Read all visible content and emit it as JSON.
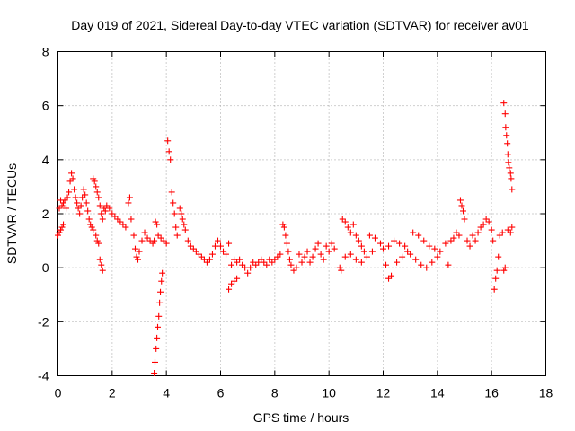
{
  "chart_data": {
    "type": "scatter",
    "title": "Day 019 of 2021, Sidereal Day-to-day VTEC variation (SDTVAR) for receiver av01",
    "xlabel": "GPS time / hours",
    "ylabel": "SDTVAR / TECUs",
    "xlim": [
      0,
      18
    ],
    "ylim": [
      -4,
      8
    ],
    "xticks": [
      0,
      2,
      4,
      6,
      8,
      10,
      12,
      14,
      16,
      18
    ],
    "yticks": [
      -4,
      -2,
      0,
      2,
      4,
      6,
      8
    ],
    "grid": true,
    "marker": "+",
    "color": "#ff0000",
    "series": [
      {
        "name": "SDTVAR",
        "points": [
          [
            0.0,
            1.2
          ],
          [
            0.05,
            1.3
          ],
          [
            0.1,
            1.4
          ],
          [
            0.15,
            1.5
          ],
          [
            0.2,
            1.6
          ],
          [
            0.05,
            2.2
          ],
          [
            0.1,
            2.5
          ],
          [
            0.15,
            2.3
          ],
          [
            0.2,
            2.4
          ],
          [
            0.25,
            2.5
          ],
          [
            0.3,
            2.2
          ],
          [
            0.35,
            2.6
          ],
          [
            0.4,
            2.8
          ],
          [
            0.45,
            3.2
          ],
          [
            0.5,
            3.5
          ],
          [
            0.55,
            3.3
          ],
          [
            0.6,
            2.9
          ],
          [
            0.65,
            2.6
          ],
          [
            0.7,
            2.4
          ],
          [
            0.75,
            2.2
          ],
          [
            0.8,
            2.0
          ],
          [
            0.85,
            2.3
          ],
          [
            0.9,
            2.6
          ],
          [
            0.95,
            2.9
          ],
          [
            1.0,
            2.7
          ],
          [
            1.05,
            2.4
          ],
          [
            1.1,
            2.1
          ],
          [
            1.15,
            1.8
          ],
          [
            1.2,
            1.6
          ],
          [
            1.25,
            1.5
          ],
          [
            1.3,
            1.4
          ],
          [
            1.3,
            3.3
          ],
          [
            1.35,
            3.2
          ],
          [
            1.4,
            3.0
          ],
          [
            1.45,
            2.8
          ],
          [
            1.5,
            2.6
          ],
          [
            1.55,
            2.3
          ],
          [
            1.6,
            2.0
          ],
          [
            1.65,
            1.8
          ],
          [
            1.55,
            0.3
          ],
          [
            1.6,
            0.1
          ],
          [
            1.65,
            -0.1
          ],
          [
            1.4,
            1.2
          ],
          [
            1.45,
            1.0
          ],
          [
            1.5,
            0.9
          ],
          [
            1.7,
            2.2
          ],
          [
            1.75,
            2.1
          ],
          [
            1.8,
            2.3
          ],
          [
            1.9,
            2.2
          ],
          [
            2.0,
            2.0
          ],
          [
            2.1,
            1.9
          ],
          [
            2.2,
            1.8
          ],
          [
            2.3,
            1.7
          ],
          [
            2.4,
            1.6
          ],
          [
            2.5,
            1.5
          ],
          [
            2.6,
            2.4
          ],
          [
            2.65,
            2.6
          ],
          [
            2.7,
            1.8
          ],
          [
            2.8,
            1.2
          ],
          [
            2.85,
            0.7
          ],
          [
            2.9,
            0.4
          ],
          [
            2.95,
            0.3
          ],
          [
            3.0,
            0.6
          ],
          [
            3.1,
            1.0
          ],
          [
            3.2,
            1.3
          ],
          [
            3.3,
            1.1
          ],
          [
            3.4,
            1.0
          ],
          [
            3.5,
            0.9
          ],
          [
            3.55,
            1.0
          ],
          [
            3.6,
            1.7
          ],
          [
            3.65,
            1.6
          ],
          [
            3.55,
            -3.9
          ],
          [
            3.58,
            -3.5
          ],
          [
            3.62,
            -3.0
          ],
          [
            3.65,
            -2.6
          ],
          [
            3.68,
            -2.2
          ],
          [
            3.72,
            -1.8
          ],
          [
            3.75,
            -1.3
          ],
          [
            3.78,
            -0.9
          ],
          [
            3.82,
            -0.5
          ],
          [
            3.85,
            -0.2
          ],
          [
            3.7,
            1.2
          ],
          [
            3.8,
            1.1
          ],
          [
            3.9,
            1.0
          ],
          [
            4.0,
            0.9
          ],
          [
            4.05,
            4.7
          ],
          [
            4.1,
            4.3
          ],
          [
            4.15,
            4.0
          ],
          [
            4.2,
            2.8
          ],
          [
            4.25,
            2.4
          ],
          [
            4.3,
            2.0
          ],
          [
            4.35,
            1.5
          ],
          [
            4.4,
            1.2
          ],
          [
            4.5,
            2.2
          ],
          [
            4.55,
            2.0
          ],
          [
            4.6,
            1.8
          ],
          [
            4.65,
            1.6
          ],
          [
            4.7,
            1.4
          ],
          [
            4.8,
            1.0
          ],
          [
            4.9,
            0.8
          ],
          [
            5.0,
            0.7
          ],
          [
            5.1,
            0.6
          ],
          [
            5.2,
            0.5
          ],
          [
            5.3,
            0.4
          ],
          [
            5.4,
            0.3
          ],
          [
            5.5,
            0.2
          ],
          [
            5.6,
            0.3
          ],
          [
            5.7,
            0.5
          ],
          [
            5.8,
            0.8
          ],
          [
            5.9,
            1.0
          ],
          [
            6.0,
            0.8
          ],
          [
            6.1,
            0.6
          ],
          [
            6.2,
            0.5
          ],
          [
            6.3,
            0.9
          ],
          [
            6.4,
            0.1
          ],
          [
            6.3,
            -0.8
          ],
          [
            6.4,
            -0.6
          ],
          [
            6.5,
            -0.5
          ],
          [
            6.6,
            -0.4
          ],
          [
            6.5,
            0.3
          ],
          [
            6.6,
            0.2
          ],
          [
            6.7,
            0.3
          ],
          [
            6.8,
            0.1
          ],
          [
            6.9,
            0.0
          ],
          [
            7.0,
            -0.2
          ],
          [
            7.1,
            0.0
          ],
          [
            7.2,
            0.2
          ],
          [
            7.3,
            0.1
          ],
          [
            7.4,
            0.2
          ],
          [
            7.5,
            0.3
          ],
          [
            7.6,
            0.2
          ],
          [
            7.7,
            0.1
          ],
          [
            7.8,
            0.3
          ],
          [
            7.9,
            0.2
          ],
          [
            8.0,
            0.3
          ],
          [
            8.1,
            0.4
          ],
          [
            8.2,
            0.5
          ],
          [
            8.3,
            1.6
          ],
          [
            8.35,
            1.5
          ],
          [
            8.4,
            1.2
          ],
          [
            8.45,
            0.9
          ],
          [
            8.5,
            0.6
          ],
          [
            8.55,
            0.3
          ],
          [
            8.6,
            0.1
          ],
          [
            8.7,
            -0.1
          ],
          [
            8.8,
            0.0
          ],
          [
            8.9,
            0.5
          ],
          [
            9.0,
            0.2
          ],
          [
            9.1,
            0.4
          ],
          [
            9.2,
            0.6
          ],
          [
            9.3,
            0.2
          ],
          [
            9.4,
            0.4
          ],
          [
            9.5,
            0.7
          ],
          [
            9.6,
            0.9
          ],
          [
            9.7,
            0.5
          ],
          [
            9.8,
            0.3
          ],
          [
            9.9,
            0.8
          ],
          [
            10.0,
            0.6
          ],
          [
            10.1,
            0.9
          ],
          [
            10.2,
            0.7
          ],
          [
            10.4,
            0.0
          ],
          [
            10.45,
            -0.1
          ],
          [
            10.5,
            1.8
          ],
          [
            10.6,
            1.7
          ],
          [
            10.7,
            1.5
          ],
          [
            10.8,
            1.3
          ],
          [
            10.9,
            1.6
          ],
          [
            11.0,
            1.2
          ],
          [
            11.1,
            1.0
          ],
          [
            11.2,
            0.8
          ],
          [
            11.3,
            0.6
          ],
          [
            10.6,
            0.4
          ],
          [
            10.8,
            0.5
          ],
          [
            11.0,
            0.3
          ],
          [
            11.2,
            0.2
          ],
          [
            11.4,
            0.4
          ],
          [
            11.6,
            0.6
          ],
          [
            11.5,
            1.2
          ],
          [
            11.7,
            1.1
          ],
          [
            11.9,
            0.9
          ],
          [
            12.0,
            0.7
          ],
          [
            12.2,
            0.8
          ],
          [
            12.4,
            1.0
          ],
          [
            12.6,
            0.9
          ],
          [
            12.8,
            0.8
          ],
          [
            12.1,
            0.1
          ],
          [
            12.2,
            -0.4
          ],
          [
            12.3,
            -0.3
          ],
          [
            12.5,
            0.2
          ],
          [
            12.7,
            0.4
          ],
          [
            12.9,
            0.6
          ],
          [
            13.0,
            0.5
          ],
          [
            13.2,
            0.3
          ],
          [
            13.4,
            0.1
          ],
          [
            13.6,
            0.0
          ],
          [
            13.8,
            0.2
          ],
          [
            14.0,
            0.4
          ],
          [
            13.1,
            1.3
          ],
          [
            13.3,
            1.2
          ],
          [
            13.5,
            1.0
          ],
          [
            13.7,
            0.8
          ],
          [
            13.9,
            0.7
          ],
          [
            14.1,
            0.6
          ],
          [
            14.3,
            0.9
          ],
          [
            14.4,
            0.1
          ],
          [
            14.5,
            1.0
          ],
          [
            14.6,
            1.1
          ],
          [
            14.7,
            1.3
          ],
          [
            14.8,
            1.2
          ],
          [
            14.85,
            2.5
          ],
          [
            14.9,
            2.3
          ],
          [
            14.95,
            2.1
          ],
          [
            15.0,
            1.8
          ],
          [
            15.1,
            1.0
          ],
          [
            15.2,
            0.8
          ],
          [
            15.3,
            1.2
          ],
          [
            15.4,
            1.0
          ],
          [
            15.5,
            1.3
          ],
          [
            15.6,
            1.5
          ],
          [
            15.7,
            1.6
          ],
          [
            15.8,
            1.8
          ],
          [
            15.9,
            1.7
          ],
          [
            16.0,
            1.4
          ],
          [
            16.05,
            1.0
          ],
          [
            16.1,
            -0.8
          ],
          [
            16.15,
            -0.4
          ],
          [
            16.2,
            -0.1
          ],
          [
            16.25,
            0.4
          ],
          [
            16.3,
            1.2
          ],
          [
            16.4,
            1.3
          ],
          [
            16.45,
            6.1
          ],
          [
            16.5,
            5.7
          ],
          [
            16.52,
            5.2
          ],
          [
            16.55,
            4.9
          ],
          [
            16.58,
            4.6
          ],
          [
            16.6,
            4.2
          ],
          [
            16.62,
            3.9
          ],
          [
            16.65,
            3.7
          ],
          [
            16.7,
            3.5
          ],
          [
            16.72,
            3.3
          ],
          [
            16.75,
            2.9
          ],
          [
            16.5,
            0.0
          ],
          [
            16.45,
            -0.1
          ],
          [
            16.6,
            1.4
          ],
          [
            16.7,
            1.3
          ],
          [
            16.75,
            1.5
          ]
        ]
      }
    ]
  }
}
